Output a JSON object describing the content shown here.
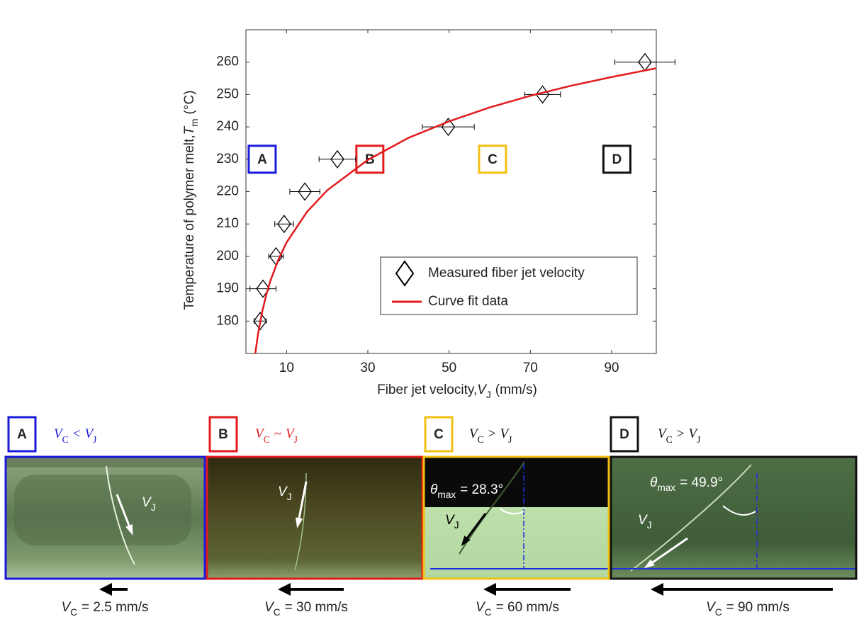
{
  "chart_data": {
    "type": "scatter",
    "x_label": {
      "text": "Fiber jet velocity,",
      "symbol": "V",
      "subscript": "J",
      "unit": "(mm/s)"
    },
    "y_label": {
      "text": "Temperature of polymer melt,",
      "symbol": "T",
      "subscript": "m",
      "unit": "(°C)"
    },
    "xlim": [
      0,
      101
    ],
    "ylim": [
      170,
      270
    ],
    "xticks": [
      10,
      30,
      50,
      70,
      90
    ],
    "yticks": [
      180,
      190,
      200,
      210,
      220,
      230,
      240,
      250,
      260
    ],
    "legend": "lower right",
    "series": [
      {
        "name": "Measured fiber jet velocity",
        "color": "#000000",
        "marker": "diamond",
        "x": [
          3.5,
          4.2,
          7.4,
          9.4,
          14.5,
          22.5,
          49.8,
          73.0,
          98.2
        ],
        "values": [
          180,
          190,
          200,
          210,
          220,
          230,
          240,
          250,
          260
        ],
        "xerr": [
          1.5,
          3.2,
          1.8,
          2.3,
          3.7,
          4.5,
          6.4,
          4.4,
          7.4
        ]
      },
      {
        "name": "Curve fit data",
        "color": "#e31a1c",
        "marker": "line",
        "x": [
          2.3,
          3,
          4,
          5,
          6,
          8,
          10,
          15,
          20,
          30,
          40,
          50,
          60,
          70,
          80,
          90,
          101
        ],
        "values": [
          170.0,
          176.2,
          182.9,
          188.1,
          192.4,
          199.0,
          204.3,
          213.7,
          220.4,
          229.8,
          236.6,
          241.7,
          246.0,
          249.6,
          252.7,
          255.4,
          258.1
        ]
      }
    ],
    "annotations": [
      {
        "text": "A",
        "x": 4,
        "y": 230,
        "color": "#1a1adb"
      },
      {
        "text": "B",
        "x": 30.5,
        "y": 230,
        "color": "#e31a1c"
      },
      {
        "text": "C",
        "x": 60.7,
        "y": 230,
        "color": "#f2c012"
      },
      {
        "text": "D",
        "x": 91.3,
        "y": 230,
        "color": "#111111"
      }
    ]
  },
  "panels": [
    {
      "label": "A",
      "color": "#1a1adb",
      "condition": {
        "a": "V",
        "a_sub": "C",
        "op": "<",
        "b": "V",
        "b_sub": "J"
      },
      "condition_color": "#1a1adb",
      "jet_label": {
        "symbol": "V",
        "sub": "J"
      },
      "speed": {
        "symbol": "V",
        "sub": "C",
        "text": "= 2.5 mm/s"
      }
    },
    {
      "label": "B",
      "color": "#e31a1c",
      "condition": {
        "a": "V",
        "a_sub": "C",
        "op": "~",
        "b": "V",
        "b_sub": "J"
      },
      "condition_color": "#e31a1c",
      "jet_label": {
        "symbol": "V",
        "sub": "J"
      },
      "speed": {
        "symbol": "V",
        "sub": "C",
        "text": "= 30 mm/s"
      }
    },
    {
      "label": "C",
      "color": "#f2c012",
      "condition": {
        "a": "V",
        "a_sub": "C",
        "op": ">",
        "b": "V",
        "b_sub": "J"
      },
      "condition_color": "#111111",
      "jet_label": {
        "symbol": "V",
        "sub": "J"
      },
      "angle": {
        "symbol": "θ",
        "sub": "max",
        "text": "= 28.3°"
      },
      "speed": {
        "symbol": "V",
        "sub": "C",
        "text": "= 60 mm/s"
      }
    },
    {
      "label": "D",
      "color": "#111111",
      "condition": {
        "a": "V",
        "a_sub": "C",
        "op": ">",
        "b": "V",
        "b_sub": "J"
      },
      "condition_color": "#111111",
      "jet_label": {
        "symbol": "V",
        "sub": "J"
      },
      "angle": {
        "symbol": "θ",
        "sub": "max",
        "text": "= 49.9°"
      },
      "speed": {
        "symbol": "V",
        "sub": "C",
        "text": "= 90 mm/s"
      }
    }
  ]
}
